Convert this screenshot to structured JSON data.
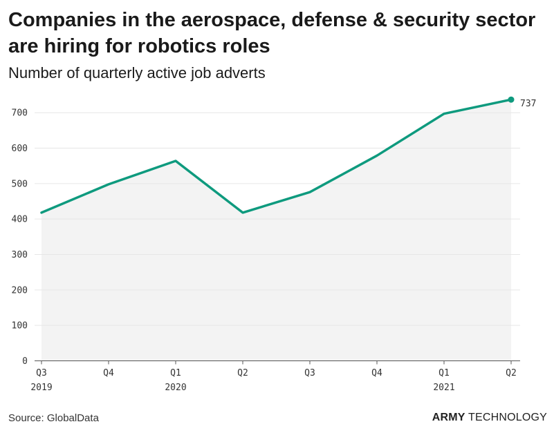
{
  "title": "Companies in the aerospace, defense & security sector are hiring for robotics roles",
  "subtitle": "Number of quarterly active job adverts",
  "source": "Source: GlobalData",
  "brand": {
    "part1": "ARMY",
    "part2": " TECHNOLOGY"
  },
  "colors": {
    "line": "#0e9a7e",
    "area": "#f3f3f3",
    "grid": "#e6e6e6",
    "axis": "#555555"
  },
  "chart_data": {
    "type": "line",
    "categories": [
      [
        "Q3",
        "2019"
      ],
      [
        "Q4",
        ""
      ],
      [
        "Q1",
        "2020"
      ],
      [
        "Q2",
        ""
      ],
      [
        "Q3",
        ""
      ],
      [
        "Q4",
        ""
      ],
      [
        "Q1",
        "2021"
      ],
      [
        "Q2",
        ""
      ]
    ],
    "series": [
      {
        "values": [
          418,
          498,
          564,
          418,
          476,
          579,
          697,
          737
        ]
      }
    ],
    "end_label": "737",
    "ylim": [
      0,
      700
    ],
    "yticks": [
      0,
      100,
      200,
      300,
      400,
      500,
      600,
      700
    ],
    "grid": true,
    "area_fill": true
  }
}
